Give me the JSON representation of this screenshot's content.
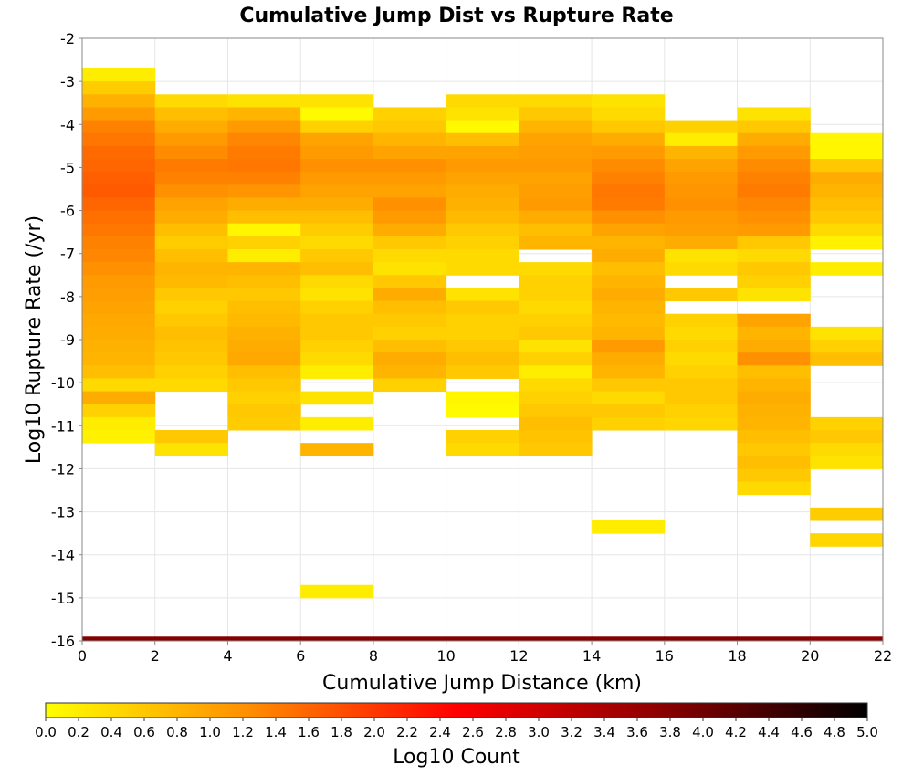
{
  "chart_data": {
    "type": "heatmap",
    "title": "Cumulative Jump Dist vs Rupture Rate",
    "xlabel": "Cumulative Jump Distance (km)",
    "ylabel": "Log10 Rupture Rate (/yr)",
    "xlim": [
      0,
      22
    ],
    "ylim": [
      -16,
      -2
    ],
    "x_ticks": [
      "0",
      "2",
      "4",
      "6",
      "8",
      "10",
      "12",
      "14",
      "16",
      "18",
      "20",
      "22"
    ],
    "y_ticks": [
      "-2",
      "-3",
      "-4",
      "-5",
      "-6",
      "-7",
      "-8",
      "-9",
      "-10",
      "-11",
      "-12",
      "-13",
      "-14",
      "-15",
      "-16"
    ],
    "grid": true,
    "x_bin_width": 2,
    "y_bin_height": 0.3,
    "colorbar": {
      "label": "Log10 Count",
      "range": [
        0,
        5
      ],
      "ticks": [
        "0.0",
        "0.2",
        "0.4",
        "0.6",
        "0.8",
        "1.0",
        "1.2",
        "1.4",
        "1.6",
        "1.8",
        "2.0",
        "2.2",
        "2.4",
        "2.6",
        "2.8",
        "3.0",
        "3.2",
        "3.4",
        "3.6",
        "3.8",
        "4.0",
        "4.2",
        "4.4",
        "4.6",
        "4.8",
        "5.0"
      ],
      "colors": [
        "#ffff00",
        "#ff8c00",
        "#ff0000",
        "#8b0000",
        "#000000"
      ]
    },
    "columns": [
      {
        "x": 0,
        "top": -2.7,
        "values": [
          0.2,
          0.55,
          0.85,
          1.1,
          1.35,
          1.45,
          1.55,
          1.6,
          1.65,
          1.7,
          1.6,
          1.5,
          1.45,
          1.35,
          1.3,
          1.2,
          1.1,
          1.05,
          1.0,
          0.95,
          0.9,
          0.85,
          0.8,
          0.7,
          0.4,
          0.9,
          0.5,
          0.2,
          0.15
        ]
      },
      {
        "x": 2,
        "top": -3.3,
        "values": [
          0.4,
          0.7,
          0.9,
          1.1,
          1.25,
          1.4,
          1.35,
          1.2,
          1.0,
          0.9,
          0.7,
          0.55,
          0.7,
          0.8,
          0.75,
          0.6,
          0.5,
          0.6,
          0.7,
          0.65,
          0.6,
          0.5,
          0.4,
          null,
          null,
          null,
          0.6,
          0.3
        ]
      },
      {
        "x": 4,
        "top": -3.3,
        "values": [
          0.3,
          0.8,
          1.1,
          1.3,
          1.4,
          1.45,
          1.35,
          1.15,
          0.9,
          0.7,
          0.1,
          0.5,
          0.2,
          0.8,
          0.7,
          0.6,
          0.7,
          0.75,
          0.85,
          0.9,
          0.95,
          0.7,
          0.6,
          0.5,
          0.6,
          0.55
        ]
      },
      {
        "x": 6,
        "top": -3.3,
        "values": [
          0.3,
          0.05,
          0.5,
          1.0,
          1.1,
          1.2,
          1.1,
          1.0,
          0.9,
          0.7,
          0.55,
          0.4,
          0.6,
          0.7,
          0.4,
          0.3,
          0.5,
          0.6,
          0.6,
          0.5,
          0.4,
          0.2,
          null,
          0.3,
          null,
          0.2,
          null,
          0.8,
          null,
          null,
          null,
          null,
          null,
          null,
          null,
          null,
          null,
          null,
          0.2
        ]
      },
      {
        "x": 8,
        "top": -3.6,
        "values": [
          0.5,
          0.6,
          0.8,
          1.0,
          1.2,
          1.1,
          1.0,
          1.2,
          1.1,
          0.9,
          0.6,
          0.4,
          0.3,
          0.6,
          0.9,
          0.7,
          0.6,
          0.5,
          0.7,
          0.9,
          0.8,
          0.5
        ]
      },
      {
        "x": 10,
        "top": -3.3,
        "values": [
          0.4,
          0.3,
          0.05,
          0.7,
          1.0,
          1.1,
          1.0,
          0.9,
          0.85,
          0.75,
          0.6,
          0.5,
          0.4,
          0.4,
          null,
          0.3,
          0.6,
          0.5,
          0.5,
          0.6,
          0.7,
          0.6,
          null,
          0.1,
          0.05,
          null,
          0.5,
          0.4
        ]
      },
      {
        "x": 12,
        "top": -3.3,
        "values": [
          0.4,
          0.6,
          0.8,
          1.0,
          1.05,
          1.1,
          1.0,
          1.05,
          1.1,
          0.9,
          0.7,
          0.8,
          null,
          0.4,
          0.5,
          0.5,
          0.4,
          0.5,
          0.6,
          0.3,
          0.5,
          0.2,
          0.4,
          0.5,
          0.6,
          0.7,
          0.65,
          0.6
        ]
      },
      {
        "x": 14,
        "top": -3.3,
        "values": [
          0.3,
          0.4,
          0.6,
          0.9,
          1.1,
          1.25,
          1.35,
          1.45,
          1.4,
          1.2,
          1.0,
          0.8,
          0.9,
          0.7,
          0.8,
          0.9,
          0.8,
          0.75,
          0.8,
          1.1,
          0.9,
          0.8,
          0.6,
          0.4,
          0.6,
          0.5,
          null,
          null,
          null,
          null,
          null,
          null,
          null,
          0.2
        ]
      },
      {
        "x": 16,
        "top": -3.9,
        "values": [
          0.5,
          0.2,
          0.8,
          1.0,
          1.1,
          1.15,
          1.2,
          1.1,
          1.05,
          0.9,
          0.3,
          0.4,
          null,
          0.6,
          null,
          0.5,
          0.4,
          0.5,
          0.4,
          0.5,
          0.6,
          0.6,
          0.5,
          0.45
        ]
      },
      {
        "x": 18,
        "top": -3.6,
        "values": [
          0.3,
          0.6,
          0.9,
          1.1,
          1.25,
          1.35,
          1.4,
          1.3,
          1.2,
          1.1,
          0.6,
          0.4,
          0.6,
          0.5,
          0.3,
          null,
          1.0,
          0.8,
          0.9,
          1.2,
          0.7,
          0.8,
          0.9,
          0.85,
          0.8,
          0.7,
          0.6,
          0.7,
          0.6,
          0.4
        ]
      },
      {
        "x": 20,
        "top": -4.2,
        "values": [
          0.1,
          0.1,
          0.6,
          0.9,
          0.8,
          0.7,
          0.6,
          0.4,
          0.15,
          null,
          0.2,
          null,
          null,
          null,
          null,
          0.3,
          0.5,
          0.7,
          null,
          null,
          null,
          null,
          0.5,
          0.6,
          0.4,
          0.3,
          null,
          null,
          null,
          0.55,
          null,
          0.45
        ]
      }
    ],
    "bottom_row": {
      "y": -15.9,
      "values": [
        3.8,
        3.8,
        3.8,
        3.8,
        3.8,
        3.8,
        3.8,
        3.8,
        3.8,
        3.8,
        3.7
      ]
    }
  }
}
